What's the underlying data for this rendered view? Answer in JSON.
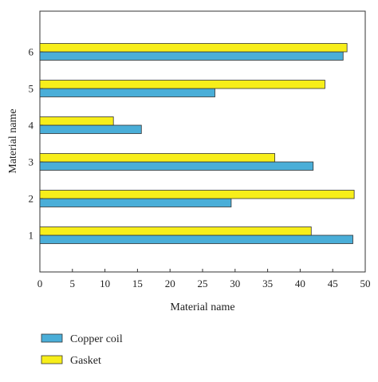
{
  "chart_data": {
    "type": "bar",
    "orientation": "horizontal",
    "categories": [
      "1",
      "2",
      "3",
      "4",
      "5",
      "6"
    ],
    "series": [
      {
        "name": "Copper coil",
        "color": "#4aaed8",
        "values": [
          48.1,
          29.4,
          42.0,
          15.6,
          26.9,
          46.6
        ]
      },
      {
        "name": "Gasket",
        "color": "#f7ee1a",
        "values": [
          41.7,
          48.3,
          36.1,
          11.3,
          43.8,
          47.2
        ]
      }
    ],
    "xlabel": "Material name",
    "ylabel": "Material name",
    "xlim": [
      0,
      50
    ],
    "xticks": [
      "0",
      "5",
      "10",
      "15",
      "20",
      "25",
      "30",
      "35",
      "40",
      "45",
      "50"
    ],
    "grid": false,
    "legend_position": "bottom-left"
  }
}
